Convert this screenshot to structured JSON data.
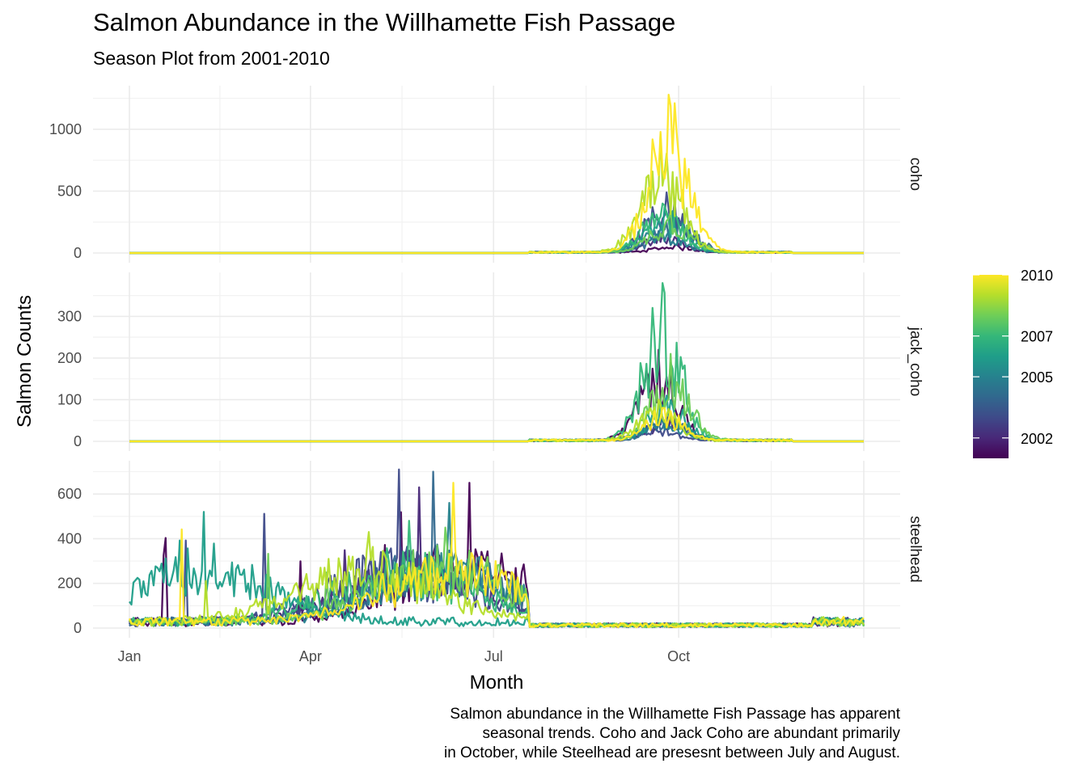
{
  "chart_data": {
    "type": "line",
    "title": "Salmon Abundance in the Willhamette Fish Passage",
    "subtitle": "Season Plot from 2001-2010",
    "xlabel": "Month",
    "ylabel": "Salmon Counts",
    "x_ticks": [
      "Jan",
      "Apr",
      "Jul",
      "Oct"
    ],
    "x_tick_days": [
      1,
      91,
      182,
      274
    ],
    "xlim_days": [
      1,
      366
    ],
    "grid": true,
    "facet_position": "right",
    "legend": {
      "placement": "right",
      "type": "colorbar",
      "labels": [
        "2010",
        "2007",
        "2005",
        "2002"
      ],
      "label_years": [
        2010,
        2007,
        2005,
        2002
      ],
      "range": [
        2001,
        2010
      ],
      "colors": [
        "#440154",
        "#482878",
        "#3e4a89",
        "#31688e",
        "#26828e",
        "#1f9e89",
        "#35b779",
        "#6ece58",
        "#b5de2b",
        "#fde725"
      ]
    },
    "years": [
      2001,
      2002,
      2003,
      2004,
      2005,
      2006,
      2007,
      2008,
      2009,
      2010
    ],
    "facets": [
      {
        "name": "coho",
        "ylim": [
          0,
          1300
        ],
        "y_ticks": [
          0,
          500,
          1000
        ],
        "y_tick_labels": [
          "0",
          "500",
          "1000"
        ],
        "peak_day": 268,
        "series_peaks": [
          {
            "year": 2001,
            "value": 60,
            "day": 272
          },
          {
            "year": 2002,
            "value": 150,
            "day": 266
          },
          {
            "year": 2003,
            "value": 490,
            "day": 268
          },
          {
            "year": 2004,
            "value": 300,
            "day": 272
          },
          {
            "year": 2005,
            "value": 200,
            "day": 265
          },
          {
            "year": 2006,
            "value": 370,
            "day": 267
          },
          {
            "year": 2007,
            "value": 400,
            "day": 266
          },
          {
            "year": 2008,
            "value": 330,
            "day": 270
          },
          {
            "year": 2009,
            "value": 960,
            "day": 265
          },
          {
            "year": 2010,
            "value": 1280,
            "day": 269
          }
        ]
      },
      {
        "name": "jack_coho",
        "ylim": [
          0,
          390
        ],
        "y_ticks": [
          0,
          100,
          200,
          300
        ],
        "y_tick_labels": [
          "0",
          "100",
          "200",
          "300"
        ],
        "peak_day": 266,
        "series_peaks": [
          {
            "year": 2001,
            "value": 220,
            "day": 264
          },
          {
            "year": 2002,
            "value": 60,
            "day": 268
          },
          {
            "year": 2003,
            "value": 40,
            "day": 262
          },
          {
            "year": 2004,
            "value": 70,
            "day": 270
          },
          {
            "year": 2005,
            "value": 55,
            "day": 266
          },
          {
            "year": 2006,
            "value": 110,
            "day": 268
          },
          {
            "year": 2007,
            "value": 380,
            "day": 266
          },
          {
            "year": 2008,
            "value": 210,
            "day": 270
          },
          {
            "year": 2009,
            "value": 100,
            "day": 264
          },
          {
            "year": 2010,
            "value": 80,
            "day": 267
          }
        ]
      },
      {
        "name": "steelhead",
        "ylim": [
          0,
          720
        ],
        "y_ticks": [
          0,
          200,
          400,
          600
        ],
        "y_tick_labels": [
          "0",
          "200",
          "400",
          "600"
        ],
        "peak_day": 150,
        "series_peaks": [
          {
            "year": 2001,
            "value": 650,
            "day": 170
          },
          {
            "year": 2002,
            "value": 630,
            "day": 145
          },
          {
            "year": 2003,
            "value": 710,
            "day": 135
          },
          {
            "year": 2004,
            "value": 700,
            "day": 152
          },
          {
            "year": 2005,
            "value": 560,
            "day": 160
          },
          {
            "year": 2006,
            "value": 520,
            "day": 38
          },
          {
            "year": 2007,
            "value": 480,
            "day": 140
          },
          {
            "year": 2008,
            "value": 450,
            "day": 158
          },
          {
            "year": 2009,
            "value": 430,
            "day": 120
          },
          {
            "year": 2010,
            "value": 650,
            "day": 162
          }
        ]
      }
    ]
  },
  "caption": [
    "Salmon abundance in the Willhamette Fish Passage has apparent",
    "seasonal trends. Coho and Jack Coho are abundant primarily",
    "in October, while Steelhead are presesnt between July and August."
  ]
}
